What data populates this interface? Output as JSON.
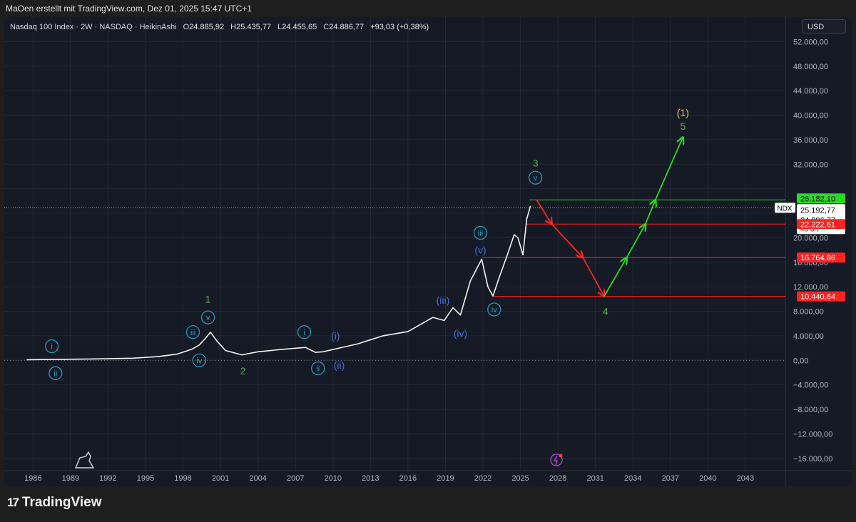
{
  "header": {
    "attribution": "MaOen erstellt mit TradingView.com, Dez 01, 2025 15:47 UTC+1"
  },
  "legend": {
    "symbol": "Nasdaq 100 Index · 2W · NASDAQ · HeikinAshi",
    "o_label": "O",
    "o_value": "24.885,92",
    "h_label": "H",
    "h_value": "25.435,77",
    "l_label": "L",
    "l_value": "24.455,65",
    "c_label": "C",
    "c_value": "24.886,77",
    "change": "+93,03 (+0,38%)"
  },
  "currency_button": "USD",
  "brand": {
    "logo": "17",
    "name": "TradingView"
  },
  "chart_data": {
    "type": "line",
    "title": "",
    "ylim": [
      -18000,
      56000
    ],
    "xlim": [
      1983.7,
      2046.2
    ],
    "y_ticks": [
      52000,
      48000,
      44000,
      40000,
      36000,
      32000,
      28000,
      24000,
      20000,
      16000,
      12000,
      8000,
      4000,
      0,
      -4000,
      -8000,
      -12000,
      -16000
    ],
    "y_tick_labels": [
      "52.000,00",
      "48.000,00",
      "44.000,00",
      "40.000,00",
      "36.000,00",
      "32.000,00",
      "",
      "",
      "20.000,00",
      "16.000,00",
      "12.000,00",
      "8.000,00",
      "4.000,00",
      "0,00",
      "−4.000,00",
      "−8.000,00",
      "−12.000,00",
      "−16.000,00"
    ],
    "x_ticks": [
      1986,
      1989,
      1992,
      1995,
      1998,
      2001,
      2004,
      2007,
      2010,
      2013,
      2016,
      2019,
      2022,
      2025,
      2028,
      2031,
      2034,
      2037,
      2040,
      2043
    ],
    "x_tick_labels": [
      "1986",
      "1989",
      "1992",
      "1995",
      "1998",
      "2001",
      "2004",
      "2007",
      "2010",
      "2013",
      "2016",
      "2019",
      "2022",
      "2025",
      "2028",
      "2031",
      "2034",
      "2037",
      "2040",
      "2043"
    ],
    "series": [
      {
        "x": [
          1985.5,
          1990,
          1994,
          1996,
          1997.5,
          1998.7,
          1999.3,
          1999.8,
          2000.2,
          2000.7,
          2001.4,
          2002.7,
          2004,
          2006,
          2007.8,
          2008.6,
          2009.2,
          2010.5,
          2012,
          2014,
          2016,
          2018,
          2018.9,
          2019.6,
          2020.2,
          2020.5,
          2021,
          2021.9,
          2022.4,
          2022.8,
          2023.3,
          2024,
          2024.5,
          2024.8,
          2025.2,
          2025.5,
          2025.8
        ],
        "y": [
          100,
          200,
          350,
          600,
          1000,
          1800,
          2500,
          3600,
          4600,
          3200,
          1600,
          900,
          1400,
          1800,
          2100,
          1300,
          1400,
          2000,
          2700,
          4000,
          4700,
          7000,
          6500,
          8600,
          7400,
          9500,
          13000,
          16500,
          12000,
          10500,
          13500,
          17500,
          20500,
          20000,
          17200,
          23000,
          25200
        ]
      }
    ],
    "price_labels": [
      {
        "value": 26182.1,
        "text": "26.182,10",
        "color": "#22dd22"
      },
      {
        "value": 25192.77,
        "text": "25.192,77",
        "color": "#ffffff"
      },
      {
        "value": 24886.77,
        "text": "24.886,77",
        "color": "#ffffff"
      },
      {
        "value": 22222.61,
        "text": "22.222,61",
        "color": "#ff2222"
      },
      {
        "value": 16764.86,
        "text": "16.764,86",
        "color": "#ff2222"
      },
      {
        "value": 10440.64,
        "text": "10.440,64",
        "color": "#ff2222"
      }
    ],
    "countdown": "4d 8h",
    "symbol_tag": "NDX",
    "levels": [
      {
        "value": 26182.1,
        "x_start": 2025.7,
        "color": "#22cc22"
      },
      {
        "value": 22222.61,
        "x_start": 2025.5,
        "color": "#ff2222"
      },
      {
        "value": 16764.86,
        "x_start": 2021.9,
        "color": "#ff2222"
      },
      {
        "value": 10440.64,
        "x_start": 2022.8,
        "color": "#ff2222"
      }
    ],
    "projection_down": {
      "x": [
        2026.3,
        2027.5,
        2030,
        2031.7
      ],
      "y": [
        26182,
        22222,
        16765,
        10441
      ],
      "color": "#ff2222"
    },
    "projection_up": {
      "x": [
        2031.7,
        2033.5,
        2035,
        2035.8,
        2038
      ],
      "y": [
        10441,
        16765,
        22222,
        26182,
        36400
      ],
      "color": "#22dd22"
    },
    "wave_labels": [
      {
        "text": "1",
        "x": 2000,
        "y": 10000,
        "color": "#4caf50",
        "circled": false
      },
      {
        "text": "v",
        "x": 2000,
        "y": 7000,
        "color": "#26a0c8",
        "circled": true
      },
      {
        "text": "iii",
        "x": 1998.8,
        "y": 4600,
        "color": "#26a0c8",
        "circled": true
      },
      {
        "text": "iv",
        "x": 1999.3,
        "y": 0,
        "color": "#26a0c8",
        "circled": true
      },
      {
        "text": "2",
        "x": 2002.8,
        "y": -1700,
        "color": "#4caf50",
        "circled": false
      },
      {
        "text": "i",
        "x": 1987.5,
        "y": 2300,
        "color": "#26a0c8",
        "circled": true
      },
      {
        "text": "ii",
        "x": 1987.8,
        "y": -2100,
        "color": "#26a0c8",
        "circled": true
      },
      {
        "text": "i",
        "x": 2007.7,
        "y": 4600,
        "color": "#26a0c8",
        "circled": true
      },
      {
        "text": "ii",
        "x": 2008.8,
        "y": -1300,
        "color": "#26a0c8",
        "circled": true
      },
      {
        "text": "(i)",
        "x": 2010.2,
        "y": 4000,
        "color": "#3d6fe0",
        "circled": false
      },
      {
        "text": "(ii)",
        "x": 2010.5,
        "y": -800,
        "color": "#3d6fe0",
        "circled": false
      },
      {
        "text": "(iii)",
        "x": 2018.8,
        "y": 9800,
        "color": "#3d6fe0",
        "circled": false
      },
      {
        "text": "(iv)",
        "x": 2020.2,
        "y": 4400,
        "color": "#3d6fe0",
        "circled": false
      },
      {
        "text": "iii",
        "x": 2021.8,
        "y": 20800,
        "color": "#26a0c8",
        "circled": true
      },
      {
        "text": "(v)",
        "x": 2021.8,
        "y": 18000,
        "color": "#3d6fe0",
        "circled": false
      },
      {
        "text": "iv",
        "x": 2022.9,
        "y": 8300,
        "color": "#26a0c8",
        "circled": true
      },
      {
        "text": "3",
        "x": 2026.2,
        "y": 32200,
        "color": "#4caf50",
        "circled": false
      },
      {
        "text": "v",
        "x": 2026.2,
        "y": 29800,
        "color": "#26a0c8",
        "circled": true
      },
      {
        "text": "4",
        "x": 2031.8,
        "y": 8000,
        "color": "#4caf50",
        "circled": false
      },
      {
        "text": "(1)",
        "x": 2038,
        "y": 40400,
        "color": "#e8c53a",
        "circled": false
      },
      {
        "text": "5",
        "x": 2038,
        "y": 38200,
        "color": "#4caf50",
        "circled": false
      }
    ]
  }
}
